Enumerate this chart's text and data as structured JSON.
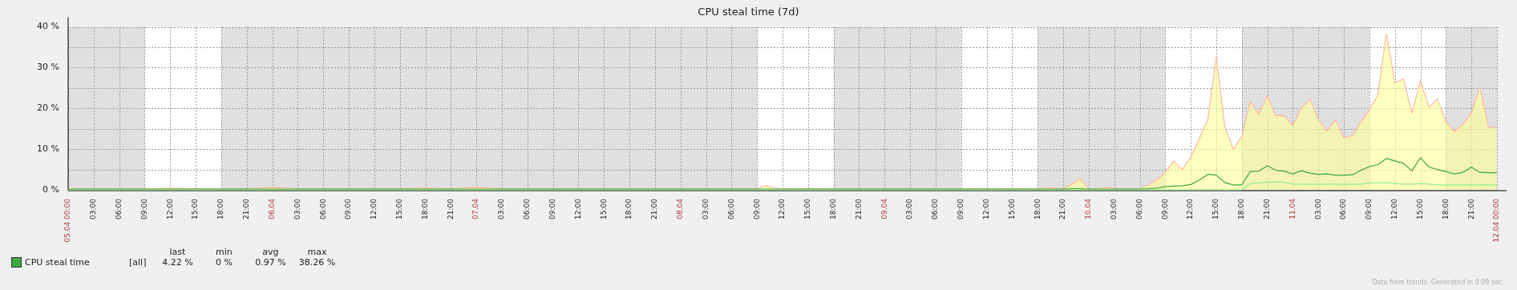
{
  "chart_data": {
    "type": "line",
    "title": "CPU steal time (7d)",
    "x": [
      "--04-05T00:00",
      "--04-05T03:00",
      "--04-05T06:00",
      "--04-05T09:00",
      "--04-05T12:00",
      "--04-05T15:00",
      "--04-05T18:00",
      "--04-05T21:00",
      "--04-06T00:00",
      "--04-06T03:00",
      "--04-06T06:00",
      "--04-06T09:00",
      "--04-06T12:00",
      "--04-06T15:00",
      "--04-06T18:00",
      "--04-06T21:00",
      "--04-07T00:00",
      "--04-07T03:00",
      "--04-07T06:00",
      "--04-07T09:00",
      "--04-07T12:00",
      "--04-07T15:00",
      "--04-07T18:00",
      "--04-07T21:00",
      "--04-08T00:00",
      "--04-08T03:00",
      "--04-08T06:00",
      "--04-08T09:00",
      "--04-08T10:00",
      "--04-08T11:00",
      "--04-08T12:00",
      "--04-08T15:00",
      "--04-08T18:00",
      "--04-08T21:00",
      "--04-09T00:00",
      "--04-09T03:00",
      "--04-09T06:00",
      "--04-09T09:00",
      "--04-09T12:00",
      "--04-09T15:00",
      "--04-09T18:00",
      "--04-09T20:00",
      "--04-09T21:00",
      "--04-09T22:00",
      "--04-09T23:00",
      "--04-10T00:00",
      "--04-10T01:00",
      "--04-10T02:00",
      "--04-10T03:00",
      "--04-10T04:00",
      "--04-10T05:00",
      "--04-10T06:00",
      "--04-10T07:00",
      "--04-10T08:00",
      "--04-10T09:00",
      "--04-10T10:00",
      "--04-10T11:00",
      "--04-10T12:00",
      "--04-10T13:00",
      "--04-10T14:00",
      "--04-10T15:00",
      "--04-10T16:00",
      "--04-10T17:00",
      "--04-10T18:00",
      "--04-10T19:00",
      "--04-10T20:00",
      "--04-10T21:00",
      "--04-10T22:00",
      "--04-10T23:00",
      "--04-11T00:00",
      "--04-11T01:00",
      "--04-11T02:00",
      "--04-11T03:00",
      "--04-11T04:00",
      "--04-11T05:00",
      "--04-11T06:00",
      "--04-11T07:00",
      "--04-11T08:00",
      "--04-11T09:00",
      "--04-11T10:00",
      "--04-11T11:00",
      "--04-11T12:00",
      "--04-11T13:00",
      "--04-11T14:00",
      "--04-11T15:00",
      "--04-11T16:00",
      "--04-11T17:00",
      "--04-11T18:00",
      "--04-11T19:00",
      "--04-11T20:00",
      "--04-11T21:00",
      "--04-11T22:00",
      "--04-11T23:00",
      "--04-12T00:00"
    ],
    "xlim": [
      "--04-05T00:00",
      "--04-12T00:00"
    ],
    "xticks": [
      {
        "value": "--04-05T00:00",
        "label": "05.04 00:00"
      },
      {
        "value": "--04-05T03:00",
        "label": "03:00"
      },
      {
        "value": "--04-05T06:00",
        "label": "06:00"
      },
      {
        "value": "--04-05T09:00",
        "label": "09:00"
      },
      {
        "value": "--04-05T12:00",
        "label": "12:00"
      },
      {
        "value": "--04-05T15:00",
        "label": "15:00"
      },
      {
        "value": "--04-05T18:00",
        "label": "18:00"
      },
      {
        "value": "--04-05T21:00",
        "label": "21:00"
      },
      {
        "value": "--04-06T00:00",
        "label": "06.04"
      },
      {
        "value": "--04-06T03:00",
        "label": "03:00"
      },
      {
        "value": "--04-06T06:00",
        "label": "06:00"
      },
      {
        "value": "--04-06T09:00",
        "label": "09:00"
      },
      {
        "value": "--04-06T12:00",
        "label": "12:00"
      },
      {
        "value": "--04-06T15:00",
        "label": "15:00"
      },
      {
        "value": "--04-06T18:00",
        "label": "18:00"
      },
      {
        "value": "--04-06T21:00",
        "label": "21:00"
      },
      {
        "value": "--04-07T00:00",
        "label": "07.04"
      },
      {
        "value": "--04-07T03:00",
        "label": "03:00"
      },
      {
        "value": "--04-07T06:00",
        "label": "06:00"
      },
      {
        "value": "--04-07T09:00",
        "label": "09:00"
      },
      {
        "value": "--04-07T12:00",
        "label": "12:00"
      },
      {
        "value": "--04-07T15:00",
        "label": "15:00"
      },
      {
        "value": "--04-07T18:00",
        "label": "18:00"
      },
      {
        "value": "--04-07T21:00",
        "label": "21:00"
      },
      {
        "value": "--04-08T00:00",
        "label": "08.04"
      },
      {
        "value": "--04-08T03:00",
        "label": "03:00"
      },
      {
        "value": "--04-08T06:00",
        "label": "06:00"
      },
      {
        "value": "--04-08T09:00",
        "label": "09:00"
      },
      {
        "value": "--04-08T12:00",
        "label": "12:00"
      },
      {
        "value": "--04-08T15:00",
        "label": "15:00"
      },
      {
        "value": "--04-08T18:00",
        "label": "18:00"
      },
      {
        "value": "--04-08T21:00",
        "label": "21:00"
      },
      {
        "value": "--04-09T00:00",
        "label": "09.04"
      },
      {
        "value": "--04-09T03:00",
        "label": "03:00"
      },
      {
        "value": "--04-09T06:00",
        "label": "06:00"
      },
      {
        "value": "--04-09T09:00",
        "label": "09:00"
      },
      {
        "value": "--04-09T12:00",
        "label": "12:00"
      },
      {
        "value": "--04-09T15:00",
        "label": "15:00"
      },
      {
        "value": "--04-09T18:00",
        "label": "18:00"
      },
      {
        "value": "--04-09T21:00",
        "label": "21:00"
      },
      {
        "value": "--04-10T00:00",
        "label": "10.04"
      },
      {
        "value": "--04-10T03:00",
        "label": "03:00"
      },
      {
        "value": "--04-10T06:00",
        "label": "06:00"
      },
      {
        "value": "--04-10T09:00",
        "label": "09:00"
      },
      {
        "value": "--04-10T12:00",
        "label": "12:00"
      },
      {
        "value": "--04-10T15:00",
        "label": "15:00"
      },
      {
        "value": "--04-10T18:00",
        "label": "18:00"
      },
      {
        "value": "--04-10T21:00",
        "label": "21:00"
      },
      {
        "value": "--04-11T00:00",
        "label": "11.04"
      },
      {
        "value": "--04-11T03:00",
        "label": "03:00"
      },
      {
        "value": "--04-11T06:00",
        "label": "06:00"
      },
      {
        "value": "--04-11T09:00",
        "label": "09:00"
      },
      {
        "value": "--04-11T12:00",
        "label": "12:00"
      },
      {
        "value": "--04-11T15:00",
        "label": "15:00"
      },
      {
        "value": "--04-11T18:00",
        "label": "18:00"
      },
      {
        "value": "--04-11T21:00",
        "label": "21:00"
      },
      {
        "value": "--04-12T00:00",
        "label": "12.04 00:00"
      }
    ],
    "ylim": [
      0,
      40
    ],
    "yticks": [
      {
        "value": 0,
        "label": "0 %"
      },
      {
        "value": 5,
        "label": null
      },
      {
        "value": 10,
        "label": "10 %"
      },
      {
        "value": 15,
        "label": null
      },
      {
        "value": 20,
        "label": "20 %"
      },
      {
        "value": 25,
        "label": null
      },
      {
        "value": 30,
        "label": "30 %"
      },
      {
        "value": 35,
        "label": null
      },
      {
        "value": 40,
        "label": "40 %"
      }
    ],
    "grid": true,
    "legend": "bottom left",
    "marker": "none",
    "bands": [
      {
        "axis": "x",
        "from": "--04-05T00:00",
        "to": "--04-05T09:00",
        "color": "#e0e0e0"
      },
      {
        "axis": "x",
        "from": "--04-05T18:00",
        "to": "--04-08T09:00",
        "color": "#e0e0e0"
      },
      {
        "axis": "x",
        "from": "--04-08T18:00",
        "to": "--04-09T09:00",
        "color": "#e0e0e0"
      },
      {
        "axis": "x",
        "from": "--04-09T18:00",
        "to": "--04-10T09:00",
        "color": "#e0e0e0"
      },
      {
        "axis": "x",
        "from": "--04-10T18:00",
        "to": "--04-11T09:00",
        "color": "#e0e0e0"
      },
      {
        "axis": "x",
        "from": "--04-11T18:00",
        "to": "--04-12T00:00",
        "color": "#e0e0e0"
      }
    ],
    "series": [
      {
        "type": "area",
        "color": "#ffb8a0",
        "values": [
          0.3,
          0.3,
          0.3,
          0.3,
          0.4,
          0.3,
          0.3,
          0.3,
          0.6,
          0.3,
          0.3,
          0.3,
          0.3,
          0.3,
          0.4,
          0.3,
          0.6,
          0.3,
          0.3,
          0.3,
          0.3,
          0.3,
          0.3,
          0.3,
          0.3,
          0.3,
          0.3,
          0.3,
          1.1,
          0.4,
          0.3,
          0.3,
          0.3,
          0.3,
          0.3,
          0.3,
          0.3,
          0.3,
          0.3,
          0.3,
          0.3,
          0.5,
          0.2,
          1.4,
          2.8,
          0.2,
          0.3,
          0.6,
          0.3,
          0.3,
          0.3,
          0.3,
          1.2,
          2.4,
          4.3,
          7.1,
          5.0,
          8.0,
          12.6,
          17.2,
          32.6,
          15.6,
          9.9,
          13.1,
          21.7,
          18.6,
          23.1,
          18.2,
          18.2,
          15.8,
          20.1,
          22.3,
          17.4,
          14.4,
          17.3,
          12.8,
          13.3,
          16.7,
          19.7,
          23.3,
          38.3,
          26.3,
          27.2,
          18.8,
          26.8,
          20.3,
          22.3,
          16.8,
          14.3,
          16.1,
          18.9,
          25.3,
          15.3,
          15.3
        ]
      },
      {
        "type": "line",
        "color": "#90ee90",
        "values": [
          0,
          0,
          0,
          0,
          0,
          0,
          0,
          0,
          0,
          0,
          0,
          0,
          0,
          0,
          0,
          0,
          0,
          0,
          0,
          0,
          0,
          0,
          0,
          0,
          0,
          0,
          0,
          0,
          0,
          0,
          0,
          0,
          0,
          0,
          0,
          0,
          0,
          0,
          0,
          0,
          0,
          0,
          0,
          0,
          0,
          0,
          0,
          0,
          0,
          0,
          0,
          0,
          0,
          0,
          0,
          0,
          0,
          0,
          0,
          0,
          0,
          0,
          0,
          0,
          1.6,
          1.7,
          1.9,
          1.9,
          1.9,
          1.4,
          1.4,
          1.4,
          1.4,
          1.4,
          1.4,
          1.4,
          1.4,
          1.4,
          1.7,
          1.7,
          1.8,
          1.6,
          1.4,
          1.4,
          1.6,
          1.4,
          1.2,
          1.2,
          1.2,
          1.2,
          1.2,
          1.2,
          1.2,
          1.2
        ]
      },
      {
        "name": "CPU steal time",
        "color": "#3caa3c",
        "values": [
          0.2,
          0.2,
          0.2,
          0.2,
          0.2,
          0.2,
          0.2,
          0.2,
          0.2,
          0.2,
          0.2,
          0.2,
          0.2,
          0.2,
          0.2,
          0.2,
          0.2,
          0.2,
          0.2,
          0.2,
          0.2,
          0.2,
          0.2,
          0.2,
          0.2,
          0.2,
          0.2,
          0.2,
          0.2,
          0.2,
          0.2,
          0.2,
          0.2,
          0.2,
          0.2,
          0.2,
          0.2,
          0.2,
          0.2,
          0.2,
          0.2,
          0.2,
          0.2,
          0.3,
          0.3,
          0.2,
          0.2,
          0.2,
          0.2,
          0.2,
          0.2,
          0.2,
          0.3,
          0.4,
          0.8,
          0.9,
          1.0,
          1.3,
          2.4,
          3.8,
          3.6,
          1.8,
          1.2,
          1.2,
          4.5,
          4.6,
          5.9,
          4.8,
          4.6,
          3.9,
          4.7,
          4.1,
          3.8,
          3.9,
          3.6,
          3.6,
          3.7,
          4.8,
          5.7,
          6.2,
          7.7,
          7.1,
          6.5,
          4.7,
          7.9,
          5.6,
          5.0,
          4.5,
          3.9,
          4.3,
          5.6,
          4.3,
          4.2,
          4.2
        ]
      }
    ],
    "annotations": [
      "[all]",
      "last",
      "4.22 %",
      "min",
      "0 %",
      "avg",
      "0.97 %",
      "max",
      "38.26 %",
      "Data from trends. Generated in 0.09 sec."
    ]
  }
}
